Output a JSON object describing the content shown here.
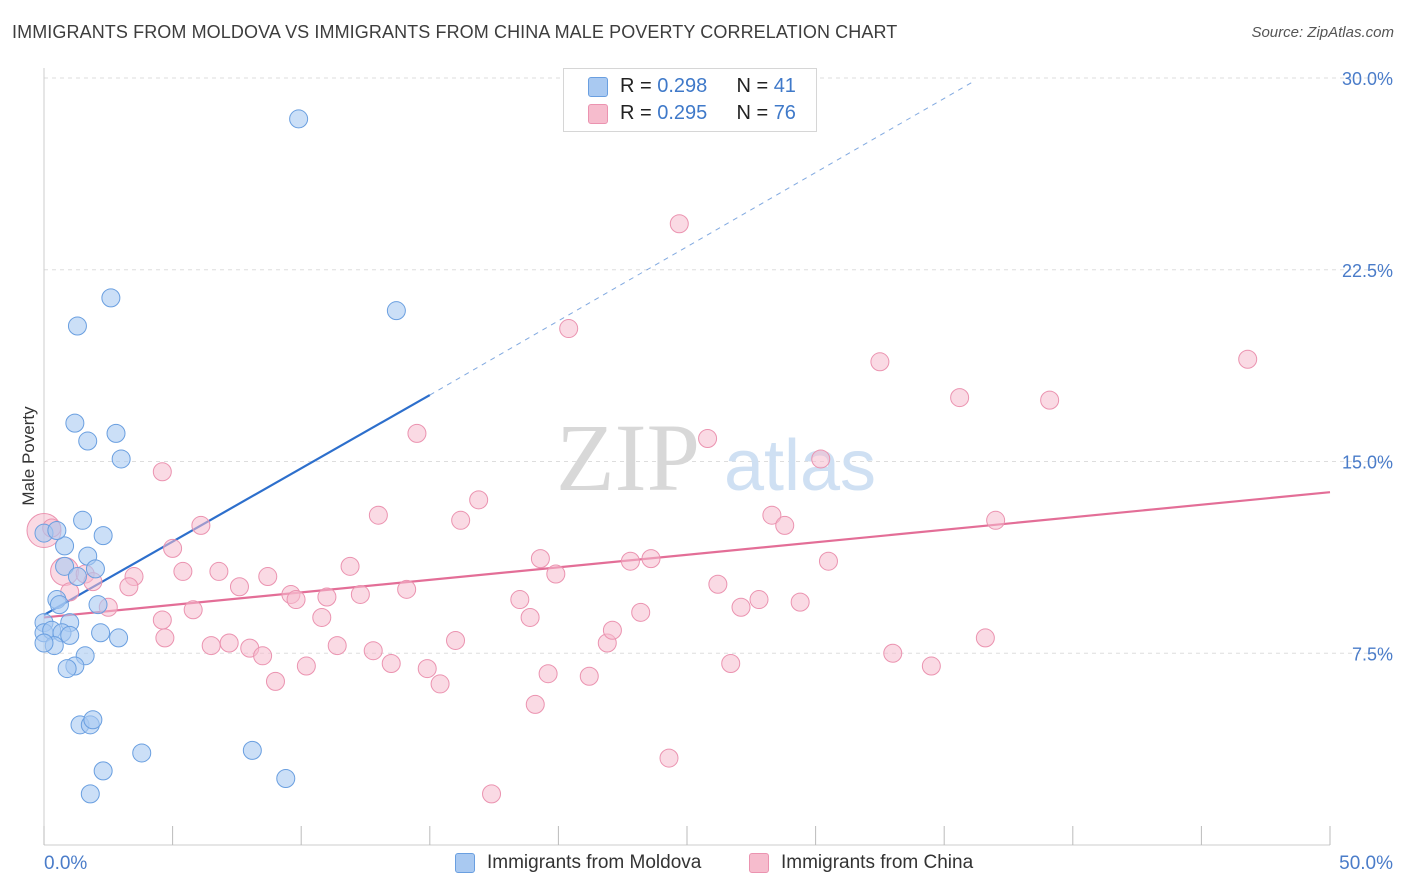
{
  "title": "IMMIGRANTS FROM MOLDOVA VS IMMIGRANTS FROM CHINA MALE POVERTY CORRELATION CHART",
  "source": "Source: ZipAtlas.com",
  "watermark": {
    "zip": "ZIP",
    "atlas": "atlas"
  },
  "colors": {
    "moldova_fill": "#a9c9f1",
    "moldova_stroke": "#6a9fe0",
    "moldova_line": "#2d6fcc",
    "china_fill": "#f6bccd",
    "china_stroke": "#eb93b0",
    "china_line": "#e36e97",
    "tick_text": "#4a7cc9",
    "grid": "#dddddd"
  },
  "legend": {
    "moldova": {
      "r_label": "R = ",
      "r_value": "0.298",
      "n_label": "N = ",
      "n_value": "41"
    },
    "china": {
      "r_label": "R = ",
      "r_value": "0.295",
      "n_label": "N = ",
      "n_value": "76"
    }
  },
  "bottom_legend": {
    "moldova": "Immigrants from Moldova",
    "china": "Immigrants from China"
  },
  "chart_data": {
    "type": "scatter",
    "title": "IMMIGRANTS FROM MOLDOVA VS IMMIGRANTS FROM CHINA MALE POVERTY CORRELATION CHART",
    "xlabel": "",
    "ylabel": "Male Poverty",
    "xlim": [
      0,
      50
    ],
    "ylim": [
      0,
      31
    ],
    "x_tick_labels": [
      "0.0%",
      "50.0%"
    ],
    "y_ticks": [
      7.5,
      15.0,
      22.5,
      30.0
    ],
    "y_tick_labels": [
      "7.5%",
      "15.0%",
      "22.5%",
      "30.0%"
    ],
    "grid": true,
    "legend_position": "top-center",
    "series": [
      {
        "name": "Immigrants from Moldova",
        "r": 0.298,
        "n": 41,
        "trend": {
          "x0": 0,
          "y0": 9.0,
          "x1": 15,
          "y1": 17.6,
          "dashed_to_x": 36.2,
          "dashed_to_y": 29.9
        },
        "points": [
          [
            9.9,
            28.4
          ],
          [
            2.6,
            21.4
          ],
          [
            1.3,
            20.3
          ],
          [
            13.7,
            20.9
          ],
          [
            1.2,
            16.5
          ],
          [
            1.7,
            15.8
          ],
          [
            2.8,
            16.1
          ],
          [
            3.0,
            15.1
          ],
          [
            1.5,
            12.7
          ],
          [
            0.0,
            12.2
          ],
          [
            2.3,
            12.1
          ],
          [
            0.8,
            11.7
          ],
          [
            1.7,
            11.3
          ],
          [
            0.8,
            10.9
          ],
          [
            2.0,
            10.8
          ],
          [
            1.3,
            10.5
          ],
          [
            0.5,
            9.6
          ],
          [
            0.6,
            9.4
          ],
          [
            2.1,
            9.4
          ],
          [
            0.0,
            8.7
          ],
          [
            1.0,
            8.7
          ],
          [
            0.0,
            8.3
          ],
          [
            0.3,
            8.4
          ],
          [
            0.7,
            8.3
          ],
          [
            1.0,
            8.2
          ],
          [
            2.2,
            8.3
          ],
          [
            2.9,
            8.1
          ],
          [
            0.4,
            7.8
          ],
          [
            0.0,
            7.9
          ],
          [
            1.6,
            7.4
          ],
          [
            1.2,
            7.0
          ],
          [
            0.9,
            6.9
          ],
          [
            1.4,
            4.7
          ],
          [
            1.8,
            4.7
          ],
          [
            1.9,
            4.9
          ],
          [
            3.8,
            3.6
          ],
          [
            8.1,
            3.7
          ],
          [
            2.3,
            2.9
          ],
          [
            9.4,
            2.6
          ],
          [
            1.8,
            2.0
          ],
          [
            0.5,
            12.3
          ]
        ]
      },
      {
        "name": "Immigrants from China",
        "r": 0.295,
        "n": 76,
        "trend": {
          "x0": 0,
          "y0": 8.9,
          "x1": 50,
          "y1": 13.8
        },
        "points": [
          [
            0.0,
            12.3
          ],
          [
            0.8,
            10.7
          ],
          [
            1.6,
            10.6
          ],
          [
            1.9,
            10.3
          ],
          [
            1.0,
            9.9
          ],
          [
            3.5,
            10.5
          ],
          [
            3.3,
            10.1
          ],
          [
            2.5,
            9.3
          ],
          [
            4.7,
            8.1
          ],
          [
            4.6,
            8.8
          ],
          [
            4.6,
            14.6
          ],
          [
            5.0,
            11.6
          ],
          [
            5.4,
            10.7
          ],
          [
            5.8,
            9.2
          ],
          [
            6.1,
            12.5
          ],
          [
            6.5,
            7.8
          ],
          [
            6.8,
            10.7
          ],
          [
            7.2,
            7.9
          ],
          [
            7.6,
            10.1
          ],
          [
            8.0,
            7.7
          ],
          [
            8.5,
            7.4
          ],
          [
            8.7,
            10.5
          ],
          [
            9.0,
            6.4
          ],
          [
            9.6,
            9.8
          ],
          [
            9.8,
            9.6
          ],
          [
            10.2,
            7.0
          ],
          [
            10.8,
            8.9
          ],
          [
            11.0,
            9.7
          ],
          [
            11.4,
            7.8
          ],
          [
            11.9,
            10.9
          ],
          [
            12.3,
            9.8
          ],
          [
            12.8,
            7.6
          ],
          [
            13.0,
            12.9
          ],
          [
            13.5,
            7.1
          ],
          [
            14.1,
            10.0
          ],
          [
            14.5,
            16.1
          ],
          [
            14.9,
            6.9
          ],
          [
            15.4,
            6.3
          ],
          [
            16.0,
            8.0
          ],
          [
            16.2,
            12.7
          ],
          [
            16.9,
            13.5
          ],
          [
            17.4,
            2.0
          ],
          [
            18.5,
            9.6
          ],
          [
            18.9,
            8.9
          ],
          [
            19.1,
            5.5
          ],
          [
            19.3,
            11.2
          ],
          [
            19.6,
            6.7
          ],
          [
            19.9,
            10.6
          ],
          [
            20.4,
            20.2
          ],
          [
            21.2,
            6.6
          ],
          [
            21.9,
            7.9
          ],
          [
            22.1,
            8.4
          ],
          [
            22.8,
            11.1
          ],
          [
            23.2,
            9.1
          ],
          [
            23.6,
            11.2
          ],
          [
            24.3,
            3.4
          ],
          [
            24.7,
            24.3
          ],
          [
            25.8,
            15.9
          ],
          [
            26.2,
            10.2
          ],
          [
            26.7,
            7.1
          ],
          [
            27.1,
            9.3
          ],
          [
            27.8,
            9.6
          ],
          [
            28.3,
            12.9
          ],
          [
            28.8,
            12.5
          ],
          [
            29.4,
            9.5
          ],
          [
            30.2,
            15.1
          ],
          [
            30.5,
            11.1
          ],
          [
            32.5,
            18.9
          ],
          [
            33.0,
            7.5
          ],
          [
            34.5,
            7.0
          ],
          [
            35.6,
            17.5
          ],
          [
            36.6,
            8.1
          ],
          [
            37.0,
            12.7
          ],
          [
            39.1,
            17.4
          ],
          [
            46.8,
            19.0
          ],
          [
            0.3,
            12.4
          ]
        ]
      }
    ]
  }
}
